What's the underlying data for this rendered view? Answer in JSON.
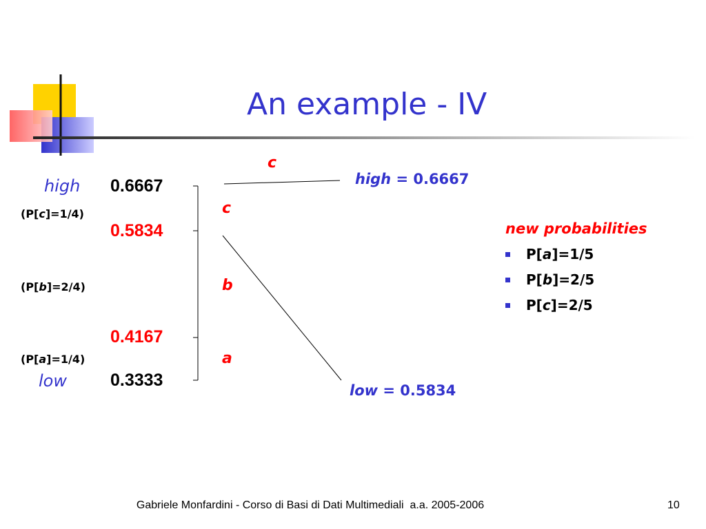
{
  "title": "An example - IV",
  "interval": {
    "high_label": "high",
    "low_label": "low",
    "values": [
      "0.6667",
      "0.5834",
      "0.4167",
      "0.3333"
    ],
    "probabilities": [
      {
        "open": "(P[",
        "symbol": "c",
        "close": "]=1/4)"
      },
      {
        "open": "(P[",
        "symbol": "b",
        "close": "]=2/4)"
      },
      {
        "open": "(P[",
        "symbol": "a",
        "close": "]=1/4)"
      }
    ],
    "symbols": [
      "c",
      "b",
      "a"
    ]
  },
  "zoom": {
    "symbol": "c",
    "high": {
      "name": "high",
      "text": " = 0.6667"
    },
    "low": {
      "name": "low",
      "text": " = 0.5834"
    }
  },
  "new_probabilities": {
    "heading": "new probabilities",
    "items": [
      {
        "open": "P[",
        "symbol": "a",
        "close": "]=1/5"
      },
      {
        "open": "P[",
        "symbol": "b",
        "close": "]=2/5"
      },
      {
        "open": "P[",
        "symbol": "c",
        "close": "]=2/5"
      }
    ]
  },
  "footer": {
    "text": "Gabriele Monfardini - Corso di Basi di Dati Multimediali  a.a. 2005-2006",
    "page": "10"
  }
}
